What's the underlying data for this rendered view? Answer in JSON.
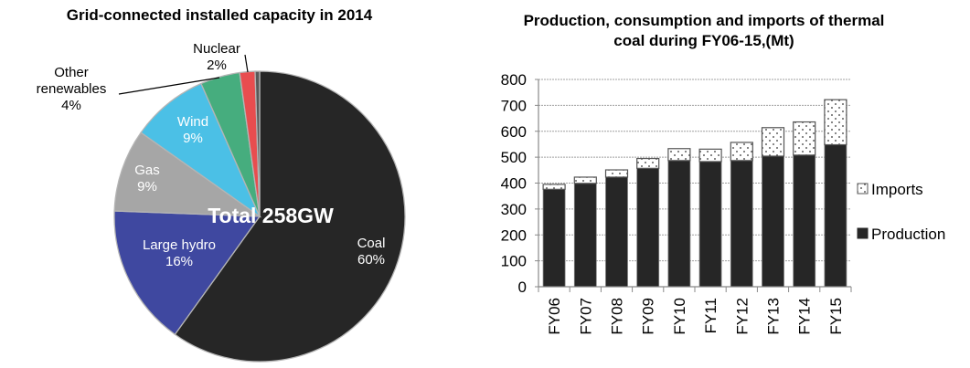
{
  "chart_data": [
    {
      "type": "pie",
      "title": "Grid-connected installed capacity in 2014",
      "center_label": "Total 258GW",
      "start": "top, clockwise",
      "slices": [
        {
          "name": "Coal",
          "label": "Coal",
          "pct_label": "60%",
          "value": 59.9,
          "color": "#262626",
          "label_color": "white"
        },
        {
          "name": "Large hydro",
          "label": "Large hydro",
          "pct_label": "16%",
          "value": 15.7,
          "color": "#3F48A0",
          "label_color": "white"
        },
        {
          "name": "Gas",
          "label": "Gas",
          "pct_label": "9%",
          "value": 9.2,
          "color": "#A6A6A6",
          "label_color": "white"
        },
        {
          "name": "Wind",
          "label": "Wind",
          "pct_label": "9%",
          "value": 8.6,
          "color": "#4BC0E6",
          "label_color": "white"
        },
        {
          "name": "Other renewables",
          "label": "Other renewables",
          "pct_label": "4%",
          "value": 4.4,
          "color": "#46AD7E",
          "label_color": "black"
        },
        {
          "name": "Nuclear",
          "label": "Nuclear",
          "pct_label": "2%",
          "value": 1.7,
          "color": "#E84D4F",
          "label_color": "black"
        },
        {
          "name": "unlabeled",
          "label": "",
          "pct_label": "",
          "value": 0.5,
          "color": "#595959",
          "label_color": "black"
        }
      ]
    },
    {
      "type": "bar",
      "stacked": true,
      "title": "Production, consumption and imports of thermal coal during FY06-15,(Mt)",
      "categories": [
        "FY06",
        "FY07",
        "FY08",
        "FY09",
        "FY10",
        "FY11",
        "FY12",
        "FY13",
        "FY14",
        "FY15"
      ],
      "series": [
        {
          "name": "Production",
          "color": "#262626",
          "pattern": "solid",
          "values": [
            376,
            399,
            423,
            457,
            487,
            483,
            487,
            504,
            508,
            548
          ]
        },
        {
          "name": "Imports",
          "color": "#ffffff",
          "pattern": "dotted",
          "values": [
            19,
            24,
            28,
            38,
            46,
            48,
            70,
            110,
            128,
            174
          ]
        }
      ],
      "totals": [
        395,
        423,
        451,
        495,
        533,
        531,
        557,
        614,
        636,
        722
      ],
      "xlabel": "",
      "ylabel": "",
      "ylim": [
        0,
        800
      ],
      "yticks": [
        0,
        100,
        200,
        300,
        400,
        500,
        600,
        700,
        800
      ],
      "grid": true,
      "legend": {
        "placement": "right",
        "entries": [
          "Imports",
          "Production"
        ]
      }
    }
  ]
}
